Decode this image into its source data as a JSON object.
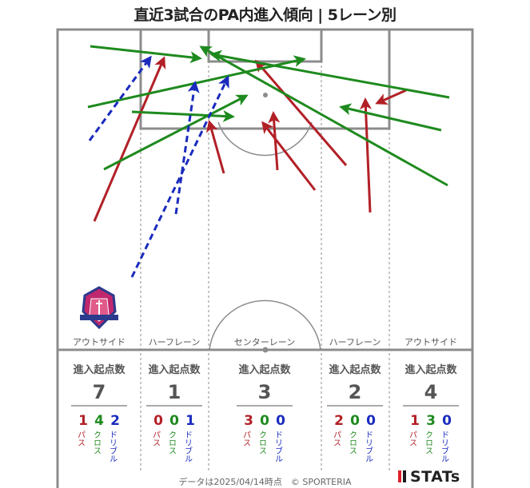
{
  "title": "直近3試合のPA内進入傾向 | 5レーン別",
  "lane_names": [
    "アウトサイド",
    "ハーフレーン",
    "センターレーン",
    "ハーフレーン",
    "アウトサイド"
  ],
  "stat_header": "進入起点数",
  "legend_labels": {
    "pass": "パス",
    "cross": "クロス",
    "dribble": "ドリブル"
  },
  "colors": {
    "pass": "#b22027",
    "cross": "#1e8a1e",
    "dribble": "#1a2bbd",
    "line": "#8c8c8c"
  },
  "lanes": [
    {
      "total": 7,
      "pass": 1,
      "cross": 4,
      "dribble": 2
    },
    {
      "total": 1,
      "pass": 0,
      "cross": 0,
      "dribble": 1
    },
    {
      "total": 3,
      "pass": 3,
      "cross": 0,
      "dribble": 0
    },
    {
      "total": 2,
      "pass": 2,
      "cross": 0,
      "dribble": 0
    },
    {
      "total": 4,
      "pass": 1,
      "cross": 3,
      "dribble": 0
    }
  ],
  "footer": "データは2025/04/14時点　© SPORTERIA",
  "brand": "STATs",
  "chart_data": {
    "type": "flow-arrows",
    "title": "直近3試合のPA内進入傾向 | 5レーン別",
    "arrows": [
      {
        "type": "pass",
        "from": [
          118,
          277
        ],
        "to": [
          205,
          73
        ]
      },
      {
        "type": "pass",
        "from": [
          280,
          217
        ],
        "to": [
          262,
          153
        ]
      },
      {
        "type": "pass",
        "from": [
          347,
          213
        ],
        "to": [
          342,
          142
        ]
      },
      {
        "type": "pass",
        "from": [
          394,
          238
        ],
        "to": [
          329,
          154
        ]
      },
      {
        "type": "pass",
        "from": [
          433,
          207
        ],
        "to": [
          321,
          77
        ]
      },
      {
        "type": "pass",
        "from": [
          463,
          266
        ],
        "to": [
          457,
          125
        ]
      },
      {
        "type": "pass",
        "from": [
          508,
          113
        ],
        "to": [
          472,
          129
        ]
      },
      {
        "type": "cross",
        "from": [
          113,
          58
        ],
        "to": [
          250,
          73
        ]
      },
      {
        "type": "cross",
        "from": [
          110,
          134
        ],
        "to": [
          380,
          74
        ]
      },
      {
        "type": "cross",
        "from": [
          165,
          140
        ],
        "to": [
          291,
          146
        ]
      },
      {
        "type": "cross",
        "from": [
          130,
          212
        ],
        "to": [
          308,
          120
        ]
      },
      {
        "type": "cross",
        "from": [
          562,
          122
        ],
        "to": [
          265,
          68
        ]
      },
      {
        "type": "cross",
        "from": [
          552,
          163
        ],
        "to": [
          427,
          134
        ]
      },
      {
        "type": "cross",
        "from": [
          560,
          232
        ],
        "to": [
          252,
          59
        ]
      },
      {
        "type": "dribble",
        "from": [
          112,
          176
        ],
        "to": [
          188,
          72
        ]
      },
      {
        "type": "dribble",
        "from": [
          165,
          347
        ],
        "to": [
          285,
          97
        ]
      },
      {
        "type": "dribble",
        "from": [
          220,
          268
        ],
        "to": [
          244,
          104
        ]
      }
    ]
  }
}
